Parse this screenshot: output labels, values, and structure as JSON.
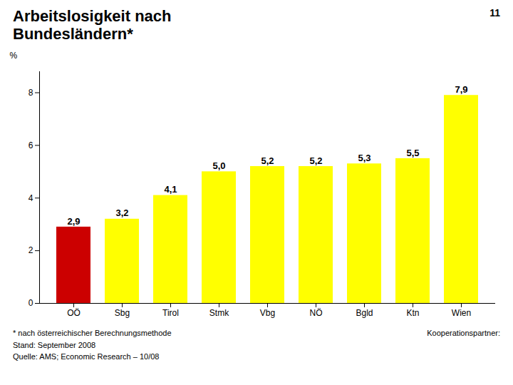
{
  "chart_data": {
    "type": "bar",
    "title": "Arbeitslosigkeit nach\nBundesländern*",
    "ylabel": "%",
    "categories": [
      "OÖ",
      "Sbg",
      "Tirol",
      "Stmk",
      "Vbg",
      "NÖ",
      "Bgld",
      "Ktn",
      "Wien"
    ],
    "values": [
      2.9,
      3.2,
      4.1,
      5.0,
      5.2,
      5.2,
      5.3,
      5.5,
      7.9
    ],
    "value_labels": [
      "2,9",
      "3,2",
      "4,1",
      "5,0",
      "5,2",
      "5,2",
      "5,3",
      "5,5",
      "7,9"
    ],
    "data_labels": true,
    "colors": [
      "#cc0000",
      "#ffff00",
      "#ffff00",
      "#ffff00",
      "#ffff00",
      "#ffff00",
      "#ffff00",
      "#ffff00",
      "#ffff00"
    ],
    "ylim": [
      0,
      8.8
    ],
    "yticks": [
      0,
      2,
      4,
      6,
      8
    ],
    "grid": false,
    "annotations": [
      "11",
      "* nach österreichischer Berechnungsmethode",
      "Stand: September 2008",
      "Quelle: AMS; Economic Research – 10/08",
      "Kooperationspartner:"
    ]
  }
}
